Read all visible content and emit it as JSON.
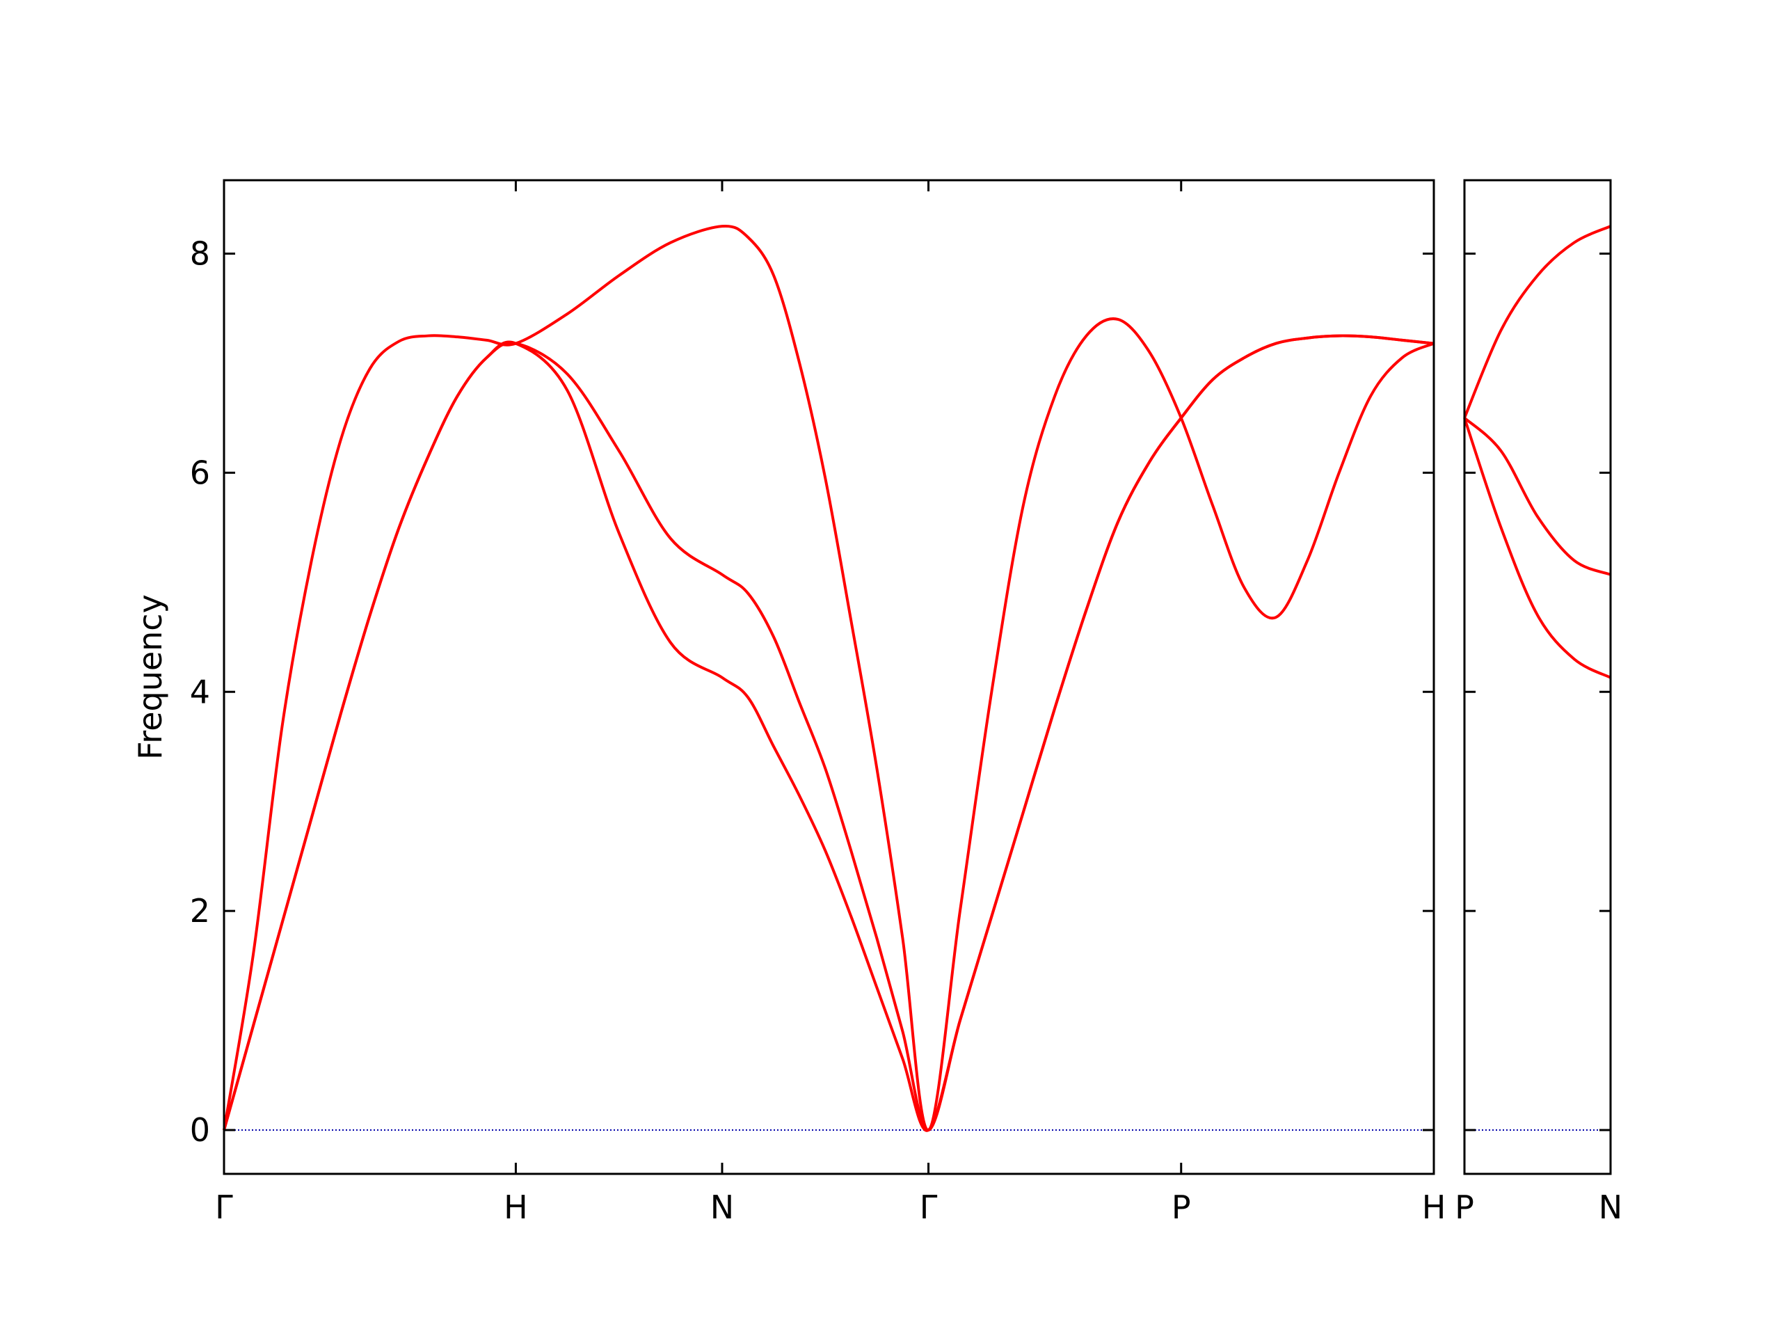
{
  "chart_data": [
    {
      "type": "line",
      "ylabel": "Frequency",
      "xlim": [
        0,
        4.1463
      ],
      "ylim": [
        -0.4,
        8.67
      ],
      "xticks": [
        {
          "value": 0,
          "label": "Γ"
        },
        {
          "value": 1,
          "label": "H"
        },
        {
          "value": 1.7071,
          "label": "N"
        },
        {
          "value": 2.4142,
          "label": "Γ"
        },
        {
          "value": 3.2802,
          "label": "P"
        },
        {
          "value": 4.1463,
          "label": "H"
        }
      ],
      "yticks": [
        0,
        2,
        4,
        6,
        8
      ],
      "ytick_labels": true,
      "hline": 0,
      "hline_color": "#0000aa",
      "x": [
        0,
        0.1,
        0.2,
        0.3,
        0.4,
        0.5,
        0.6,
        0.7,
        0.8,
        0.9,
        1,
        1.1768,
        1.3536,
        1.5303,
        1.7071,
        1.7955,
        1.8839,
        1.9723,
        2.0607,
        2.149,
        2.2374,
        2.3258,
        2.4142,
        2.5225,
        2.6307,
        2.739,
        2.8472,
        2.9555,
        3.0637,
        3.172,
        3.2802,
        3.3885,
        3.4967,
        3.605,
        3.7132,
        3.8215,
        3.9297,
        4.038,
        4.1463
      ],
      "series": [
        {
          "color": "#ff0000",
          "values": [
            0,
            0.95,
            1.9,
            2.85,
            3.8,
            4.7,
            5.5,
            6.15,
            6.7,
            7.05,
            7.18,
            6.75,
            5.45,
            4.45,
            4.13,
            3.95,
            3.5,
            3.05,
            2.55,
            1.95,
            1.3,
            0.65,
            0,
            1.0,
            1.95,
            2.9,
            3.85,
            4.75,
            5.55,
            6.1,
            6.5,
            6.85,
            7.05,
            7.18,
            7.23,
            7.25,
            7.24,
            7.21,
            7.18
          ]
        },
        {
          "color": "#ff0000",
          "values": [
            0,
            0.95,
            1.9,
            2.85,
            3.8,
            4.7,
            5.5,
            6.15,
            6.7,
            7.05,
            7.18,
            6.9,
            6.2,
            5.4,
            5.07,
            4.9,
            4.5,
            3.9,
            3.3,
            2.55,
            1.75,
            0.9,
            0,
            1.0,
            1.95,
            2.9,
            3.85,
            4.75,
            5.55,
            6.1,
            6.5,
            6.85,
            7.05,
            7.18,
            7.23,
            7.25,
            7.24,
            7.21,
            7.18
          ]
        },
        {
          "color": "#ff0000",
          "values": [
            0,
            1.6,
            3.7,
            5.2,
            6.3,
            6.95,
            7.2,
            7.25,
            7.24,
            7.21,
            7.18,
            7.45,
            7.8,
            8.1,
            8.25,
            8.15,
            7.8,
            7.0,
            5.95,
            4.65,
            3.3,
            1.75,
            0,
            2.0,
            4.0,
            5.7,
            6.7,
            7.25,
            7.4,
            7.1,
            6.5,
            5.7,
            4.95,
            4.68,
            5.2,
            6.0,
            6.7,
            7.05,
            7.18
          ]
        }
      ]
    },
    {
      "type": "line",
      "xlim": [
        4.1463,
        4.6463
      ],
      "ylim": [
        -0.4,
        8.67
      ],
      "xticks": [
        {
          "value": 4.1463,
          "label": "P"
        },
        {
          "value": 4.6463,
          "label": "N"
        }
      ],
      "yticks": [
        0,
        2,
        4,
        6,
        8
      ],
      "ytick_labels": false,
      "hline": 0,
      "hline_color": "#0000aa",
      "x": [
        4.1463,
        4.2713,
        4.3963,
        4.5213,
        4.6463
      ],
      "series": [
        {
          "color": "#ff0000",
          "values": [
            6.5,
            5.5,
            4.7,
            4.3,
            4.13
          ]
        },
        {
          "color": "#ff0000",
          "values": [
            6.5,
            6.2,
            5.6,
            5.2,
            5.07
          ]
        },
        {
          "color": "#ff0000",
          "values": [
            6.5,
            7.3,
            7.8,
            8.1,
            8.25
          ]
        }
      ]
    }
  ]
}
